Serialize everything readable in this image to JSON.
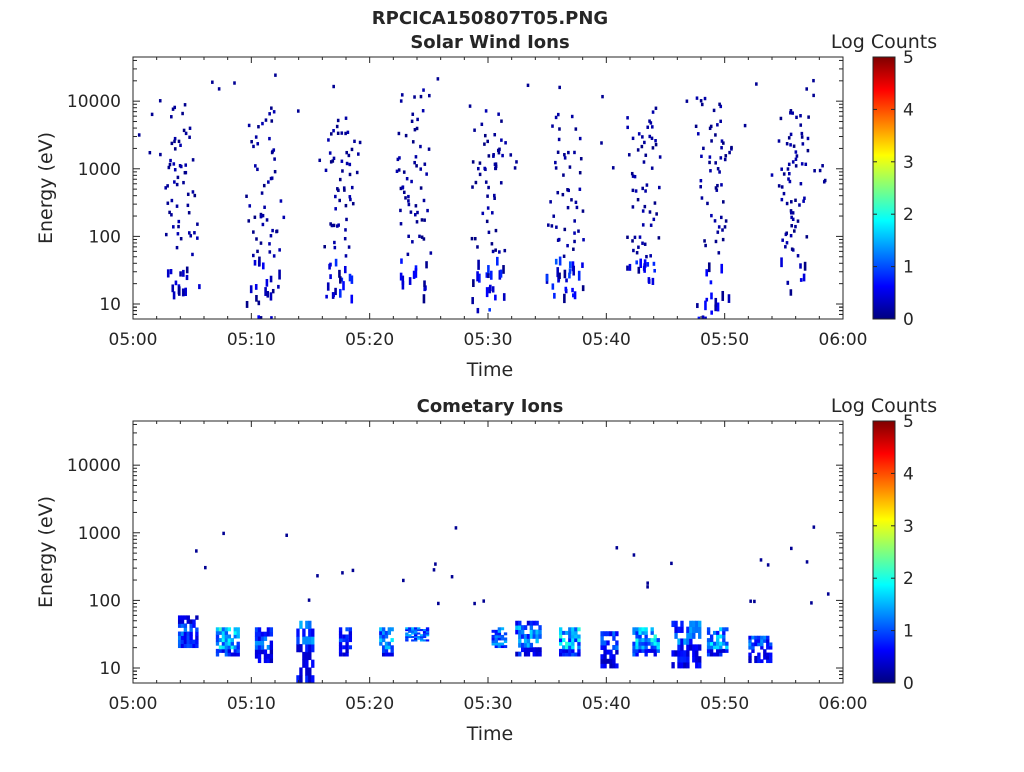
{
  "figure": {
    "title": "RPCICA150807T05.PNG"
  },
  "colorscale": {
    "stops": [
      "#00007f",
      "#0000ff",
      "#007fff",
      "#00ffff",
      "#7fff7f",
      "#ffff00",
      "#ff7f00",
      "#ff0000",
      "#7f0000"
    ]
  },
  "chart_data": [
    {
      "type": "heatmap",
      "title": "Solar Wind Ions",
      "xlabel": "Time",
      "ylabel": "Energy (eV)",
      "xlim": [
        "05:00",
        "06:00"
      ],
      "xticks": [
        "05:00",
        "05:10",
        "05:20",
        "05:30",
        "05:40",
        "05:50",
        "06:00"
      ],
      "ylim": [
        6,
        45000
      ],
      "yscale": "log",
      "yticks": [
        10,
        100,
        1000,
        10000
      ],
      "yticklabels": [
        "10",
        "100",
        "1000",
        "10000"
      ],
      "colorbar": {
        "label": "Log Counts",
        "range": [
          0,
          5
        ],
        "ticks": [
          "0",
          "1",
          "2",
          "3",
          "4",
          "5"
        ]
      },
      "bursts": [
        {
          "t": 4,
          "lo": 14,
          "hi": 9000,
          "maxlog": 0.5
        },
        {
          "t": 11,
          "lo": 6,
          "hi": 8000,
          "maxlog": 0.6
        },
        {
          "t": 17.5,
          "lo": 12,
          "hi": 7000,
          "maxlog": 0.9
        },
        {
          "t": 23.5,
          "lo": 13,
          "hi": 15000,
          "maxlog": 1.0
        },
        {
          "t": 30,
          "lo": 8,
          "hi": 8000,
          "maxlog": 1.0
        },
        {
          "t": 36.5,
          "lo": 13,
          "hi": 9000,
          "maxlog": 1.1
        },
        {
          "t": 43,
          "lo": 20,
          "hi": 8000,
          "maxlog": 1.0
        },
        {
          "t": 49,
          "lo": 6,
          "hi": 12000,
          "maxlog": 0.7
        },
        {
          "t": 55.5,
          "lo": 14,
          "hi": 8000,
          "maxlog": 0.5
        }
      ]
    },
    {
      "type": "heatmap",
      "title": "Cometary Ions",
      "xlabel": "Time",
      "ylabel": "Energy (eV)",
      "xlim": [
        "05:00",
        "06:00"
      ],
      "xticks": [
        "05:00",
        "05:10",
        "05:20",
        "05:30",
        "05:40",
        "05:50",
        "06:00"
      ],
      "ylim": [
        6,
        45000
      ],
      "yscale": "log",
      "yticks": [
        10,
        100,
        1000,
        10000
      ],
      "yticklabels": [
        "10",
        "100",
        "1000",
        "10000"
      ],
      "colorbar": {
        "label": "Log Counts",
        "range": [
          0,
          5
        ],
        "ticks": [
          "0",
          "1",
          "2",
          "3",
          "4",
          "5"
        ]
      },
      "clusters": [
        {
          "t0": 3.8,
          "t1": 5.5,
          "lo": 20,
          "hi": 60,
          "peak": 1.3
        },
        {
          "t0": 7.0,
          "t1": 9.0,
          "lo": 15,
          "hi": 40,
          "peak": 2.2
        },
        {
          "t0": 10.3,
          "t1": 11.8,
          "lo": 12,
          "hi": 40,
          "peak": 1.4
        },
        {
          "t0": 13.8,
          "t1": 15.3,
          "lo": 6,
          "hi": 50,
          "peak": 1.5
        },
        {
          "t0": 17.4,
          "t1": 18.5,
          "lo": 15,
          "hi": 40,
          "peak": 1.2
        },
        {
          "t0": 20.8,
          "t1": 22.0,
          "lo": 15,
          "hi": 40,
          "peak": 1.8
        },
        {
          "t0": 23.0,
          "t1": 25.0,
          "lo": 25,
          "hi": 40,
          "peak": 1.6
        },
        {
          "t0": 30.3,
          "t1": 31.6,
          "lo": 20,
          "hi": 40,
          "peak": 1.5
        },
        {
          "t0": 32.3,
          "t1": 34.5,
          "lo": 15,
          "hi": 50,
          "peak": 1.7
        },
        {
          "t0": 36.0,
          "t1": 37.8,
          "lo": 15,
          "hi": 40,
          "peak": 2.1
        },
        {
          "t0": 39.5,
          "t1": 41.0,
          "lo": 10,
          "hi": 35,
          "peak": 1.3
        },
        {
          "t0": 42.2,
          "t1": 44.5,
          "lo": 15,
          "hi": 40,
          "peak": 2.2
        },
        {
          "t0": 45.5,
          "t1": 48.0,
          "lo": 10,
          "hi": 50,
          "peak": 1.5
        },
        {
          "t0": 48.5,
          "t1": 50.3,
          "lo": 15,
          "hi": 40,
          "peak": 1.9
        },
        {
          "t0": 52.0,
          "t1": 54.0,
          "lo": 12,
          "hi": 30,
          "peak": 1.4
        }
      ]
    }
  ]
}
